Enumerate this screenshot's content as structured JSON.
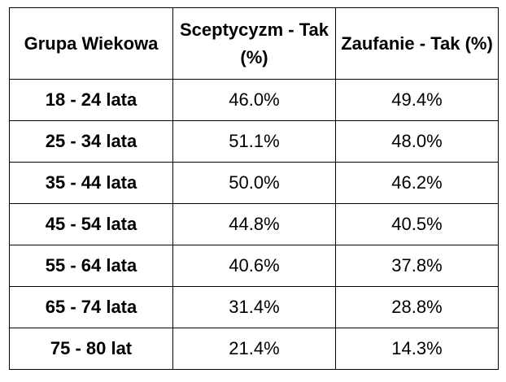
{
  "table": {
    "headers": [
      "Grupa Wiekowa",
      "Sceptycyzm - Tak (%)",
      "Zaufanie - Tak (%)"
    ],
    "rows": [
      [
        "18 - 24 lata",
        "46.0%",
        "49.4%"
      ],
      [
        "25 - 34 lata",
        "51.1%",
        "48.0%"
      ],
      [
        "35 - 44 lata",
        "50.0%",
        "46.2%"
      ],
      [
        "45 - 54 lata",
        "44.8%",
        "40.5%"
      ],
      [
        "55 - 64 lata",
        "40.6%",
        "37.8%"
      ],
      [
        "65 - 74 lata",
        "31.4%",
        "28.8%"
      ],
      [
        "75 - 80 lat",
        "21.4%",
        "14.3%"
      ]
    ]
  }
}
